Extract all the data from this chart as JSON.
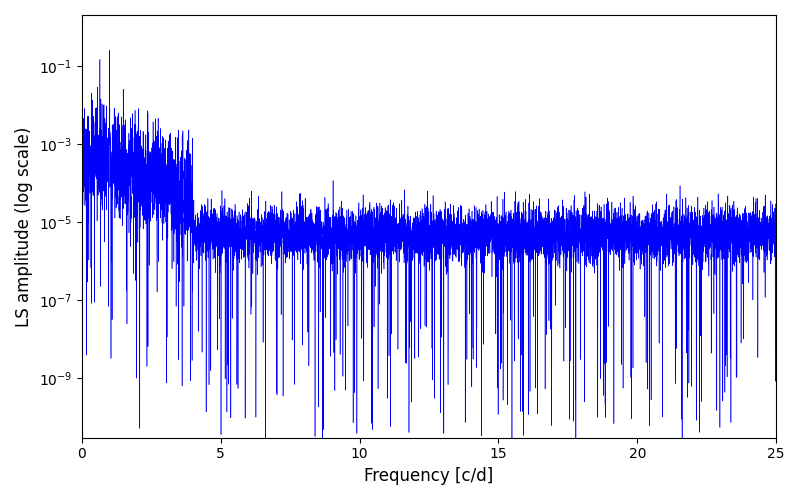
{
  "xlabel": "Frequency [c/d]",
  "ylabel": "LS amplitude (log scale)",
  "line_color": "#0000ff",
  "xlim": [
    0,
    25
  ],
  "ylim": [
    3e-11,
    2.0
  ],
  "figsize": [
    8.0,
    5.0
  ],
  "dpi": 100,
  "seed": 42,
  "n_points": 8000,
  "peak_freq": 1.0,
  "peak_amp": 0.25
}
